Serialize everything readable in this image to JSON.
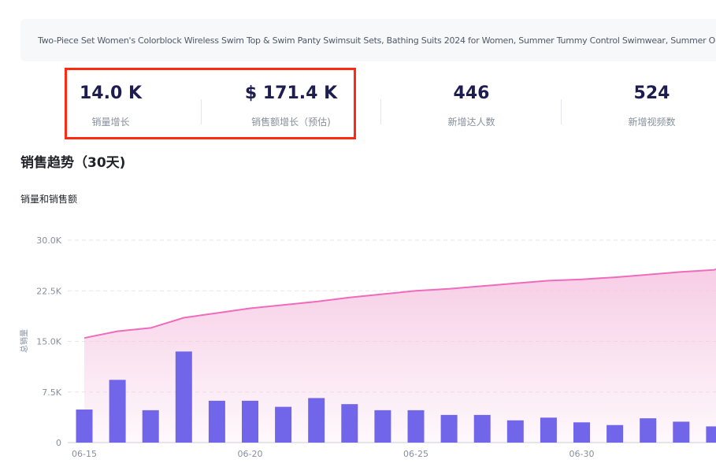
{
  "product": {
    "title": "Two-Piece Set Women's Colorblock Wireless Swim Top & Swim Panty Swimsuit Sets, Bathing Suits 2024 for Women, Summer Tummy Control Swimwear, Summer O"
  },
  "metrics": [
    {
      "value": "14.0 K",
      "label": "销量增长"
    },
    {
      "value": "$ 171.4 K",
      "label": "销售额增长（预估)"
    },
    {
      "value": "446",
      "label": "新增达人数"
    },
    {
      "value": "524",
      "label": "新增视频数"
    }
  ],
  "section": {
    "title": "销售趋势（30天)",
    "chart_subtitle": "销量和销售额"
  },
  "colors": {
    "bar": "#7166ea",
    "line": "#ef6bbd",
    "area_top": "#f6c8e3",
    "highlight": "#ff2a12"
  },
  "chart_data": {
    "type": "bar",
    "title": "销量和销售额",
    "ylabel": "总销量",
    "ylim": [
      0,
      30000
    ],
    "y_ticks": [
      "0",
      "7.5K",
      "15.0K",
      "22.5K",
      "30.0K"
    ],
    "y_tick_values": [
      0,
      7500,
      15000,
      22500,
      30000
    ],
    "x_tick_labels": [
      "06-15",
      "06-20",
      "06-25",
      "06-30"
    ],
    "x_tick_index": [
      0,
      5,
      10,
      15
    ],
    "grid": true,
    "categories": [
      "06-15",
      "06-16",
      "06-17",
      "06-18",
      "06-19",
      "06-20",
      "06-21",
      "06-22",
      "06-23",
      "06-24",
      "06-25",
      "06-26",
      "06-27",
      "06-28",
      "06-29",
      "06-30",
      "07-01",
      "07-02",
      "07-03",
      "07-04"
    ],
    "series": [
      {
        "type": "bar",
        "values": [
          4900,
          9300,
          4800,
          13500,
          6200,
          6200,
          5300,
          6600,
          5700,
          4800,
          4800,
          4100,
          4100,
          3300,
          3700,
          3000,
          2600,
          3600,
          3100,
          2400
        ]
      },
      {
        "type": "area",
        "values": [
          15500,
          16500,
          17000,
          18500,
          19200,
          19900,
          20400,
          20900,
          21500,
          22000,
          22500,
          22800,
          23200,
          23600,
          24000,
          24200,
          24500,
          24900,
          25300,
          25600
        ]
      }
    ]
  }
}
